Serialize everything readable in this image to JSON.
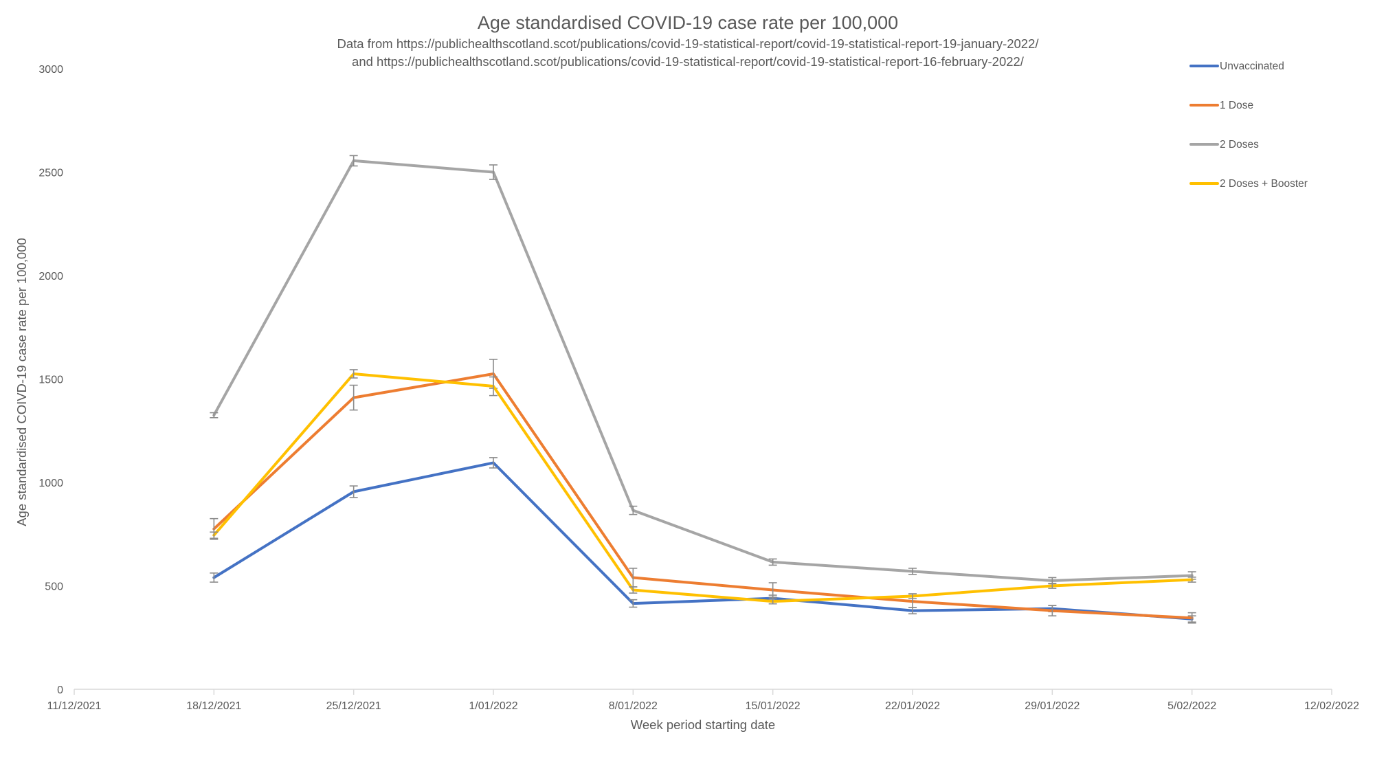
{
  "chart_data": {
    "type": "line",
    "title": "Age standardised COVID-19 case rate per 100,000",
    "subtitle_lines": [
      "Data from https://publichealthscotland.scot/publications/covid-19-statistical-report/covid-19-statistical-report-19-january-2022/",
      "and https://publichealthscotland.scot/publications/covid-19-statistical-report/covid-19-statistical-report-16-february-2022/"
    ],
    "xlabel": "Week period starting date",
    "ylabel": "Age standardised COIVD-19 case rate per 100,000",
    "x_ticks": [
      "11/12/2021",
      "18/12/2021",
      "25/12/2021",
      "1/01/2022",
      "8/01/2022",
      "15/01/2022",
      "22/01/2022",
      "29/01/2022",
      "5/02/2022",
      "12/02/2022"
    ],
    "y_ticks": [
      0,
      500,
      1000,
      1500,
      2000,
      2500,
      3000
    ],
    "ylim": [
      0,
      3000
    ],
    "x": [
      "18/12/2021",
      "25/12/2021",
      "1/01/2022",
      "8/01/2022",
      "15/01/2022",
      "22/01/2022",
      "29/01/2022",
      "5/02/2022"
    ],
    "grid": false,
    "legend_position": "top-right",
    "error_bar_color": "#8c8c8c",
    "series": [
      {
        "name": "Unvaccinated",
        "color": "#4472c4",
        "values": [
          540,
          955,
          1095,
          415,
          440,
          380,
          390,
          340
        ],
        "error": [
          22,
          28,
          25,
          18,
          15,
          15,
          15,
          15
        ]
      },
      {
        "name": "1 Dose",
        "color": "#ed7d31",
        "values": [
          775,
          1410,
          1525,
          540,
          480,
          425,
          380,
          345
        ],
        "error": [
          50,
          60,
          70,
          45,
          35,
          30,
          25,
          25
        ]
      },
      {
        "name": "2 Doses",
        "color": "#a5a5a5",
        "values": [
          1325,
          2555,
          2500,
          865,
          615,
          570,
          525,
          550
        ],
        "error": [
          12,
          25,
          35,
          20,
          15,
          15,
          15,
          18
        ]
      },
      {
        "name": "2 Doses + Booster",
        "color": "#ffc000",
        "values": [
          745,
          1525,
          1465,
          480,
          425,
          450,
          500,
          530
        ],
        "error": [
          15,
          20,
          45,
          15,
          12,
          12,
          12,
          12
        ]
      }
    ]
  }
}
